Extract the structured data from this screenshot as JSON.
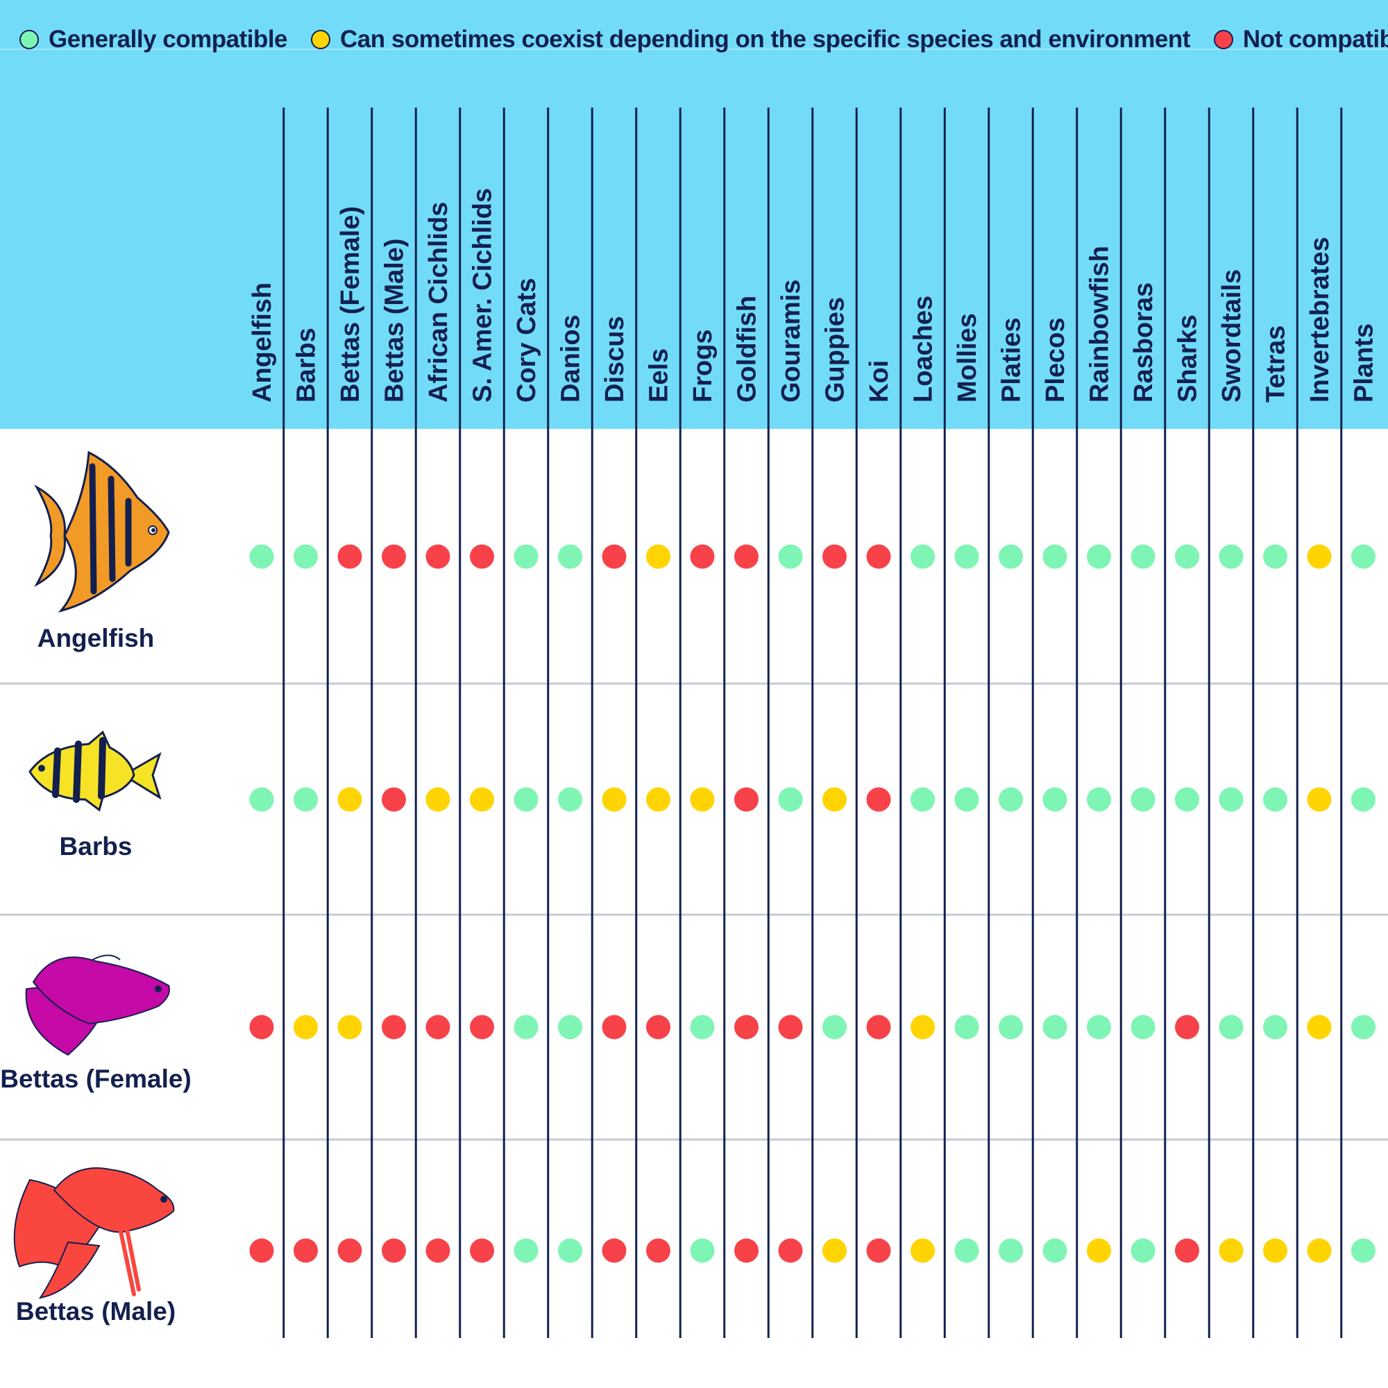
{
  "colors": {
    "header_bg": "#72dcf8",
    "ink": "#13204f",
    "divider": "#c5cad6",
    "G": "#7ef5b4",
    "Y": "#ffd400",
    "R": "#f7424a"
  },
  "legend": [
    {
      "key": "G",
      "label": "Generally compatible"
    },
    {
      "key": "Y",
      "label": "Can sometimes coexist depending on the specific species and environment"
    },
    {
      "key": "R",
      "label": "Not compatible"
    }
  ],
  "chart_data": {
    "type": "table",
    "columns": [
      "Angelfish",
      "Barbs",
      "Bettas (Female)",
      "Bettas (Male)",
      "African Cichlids",
      "S. Amer. Cichlids",
      "Cory Cats",
      "Danios",
      "Discus",
      "Eels",
      "Frogs",
      "Goldfish",
      "Gouramis",
      "Guppies",
      "Koi",
      "Loaches",
      "Mollies",
      "Platies",
      "Plecos",
      "Rainbowfish",
      "Rasboras",
      "Sharks",
      "Swordtails",
      "Tetras",
      "Invertebrates",
      "Plants"
    ],
    "rows": [
      {
        "name": "Angelfish",
        "icon": "angelfish-icon",
        "values": [
          "G",
          "G",
          "R",
          "R",
          "R",
          "R",
          "G",
          "G",
          "R",
          "Y",
          "R",
          "R",
          "G",
          "R",
          "R",
          "G",
          "G",
          "G",
          "G",
          "G",
          "G",
          "G",
          "G",
          "G",
          "Y",
          "G"
        ]
      },
      {
        "name": "Barbs",
        "icon": "barb-icon",
        "values": [
          "G",
          "G",
          "Y",
          "R",
          "Y",
          "Y",
          "G",
          "G",
          "Y",
          "Y",
          "Y",
          "R",
          "G",
          "Y",
          "R",
          "G",
          "G",
          "G",
          "G",
          "G",
          "G",
          "G",
          "G",
          "G",
          "Y",
          "G"
        ]
      },
      {
        "name": "Bettas (Female)",
        "icon": "female-betta-icon",
        "values": [
          "R",
          "Y",
          "Y",
          "R",
          "R",
          "R",
          "G",
          "G",
          "R",
          "R",
          "G",
          "R",
          "R",
          "G",
          "R",
          "Y",
          "G",
          "G",
          "G",
          "G",
          "G",
          "R",
          "G",
          "G",
          "Y",
          "G"
        ]
      },
      {
        "name": "Bettas (Male)",
        "icon": "male-betta-icon",
        "values": [
          "R",
          "R",
          "R",
          "R",
          "R",
          "R",
          "G",
          "G",
          "R",
          "R",
          "G",
          "R",
          "R",
          "Y",
          "R",
          "Y",
          "G",
          "G",
          "G",
          "Y",
          "G",
          "R",
          "Y",
          "Y",
          "Y",
          "G"
        ]
      }
    ]
  }
}
